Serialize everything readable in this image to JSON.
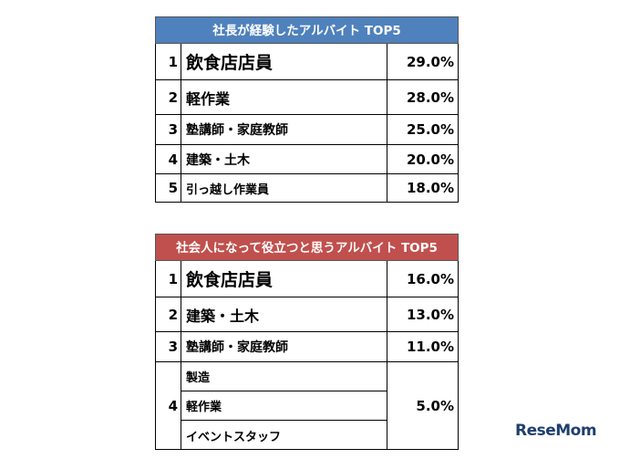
{
  "table1": {
    "title": "社長が経験したアルバイト TOP5",
    "header_color": "#4f81bd",
    "rows": [
      {
        "rank": "1",
        "job": "飲食店店員",
        "pct": "29.0%"
      },
      {
        "rank": "2",
        "job": "軽作業",
        "pct": "28.0%"
      },
      {
        "rank": "3",
        "job": "塾講師・家庭教師",
        "pct": "25.0%"
      },
      {
        "rank": "4",
        "job": "建築・土木",
        "pct": "20.0%"
      },
      {
        "rank": "5",
        "job": "引っ越し作業員",
        "pct": "18.0%"
      }
    ]
  },
  "table2": {
    "title": "社会人になって役立つと思うアルバイト TOP5",
    "header_color": "#c0504d",
    "rows": [
      {
        "rank": "1",
        "job": "飲食店店員",
        "pct": "16.0%"
      },
      {
        "rank": "2",
        "job": "建築・土木",
        "pct": "13.0%"
      },
      {
        "rank": "3",
        "job": "塾講師・家庭教師",
        "pct": "11.0%"
      }
    ],
    "tied_row": {
      "rank": "4",
      "jobs": [
        "製造",
        "軽作業",
        "イベントスタッフ"
      ],
      "pct": "5.0%"
    }
  },
  "logo": {
    "text": "ReseMom"
  }
}
